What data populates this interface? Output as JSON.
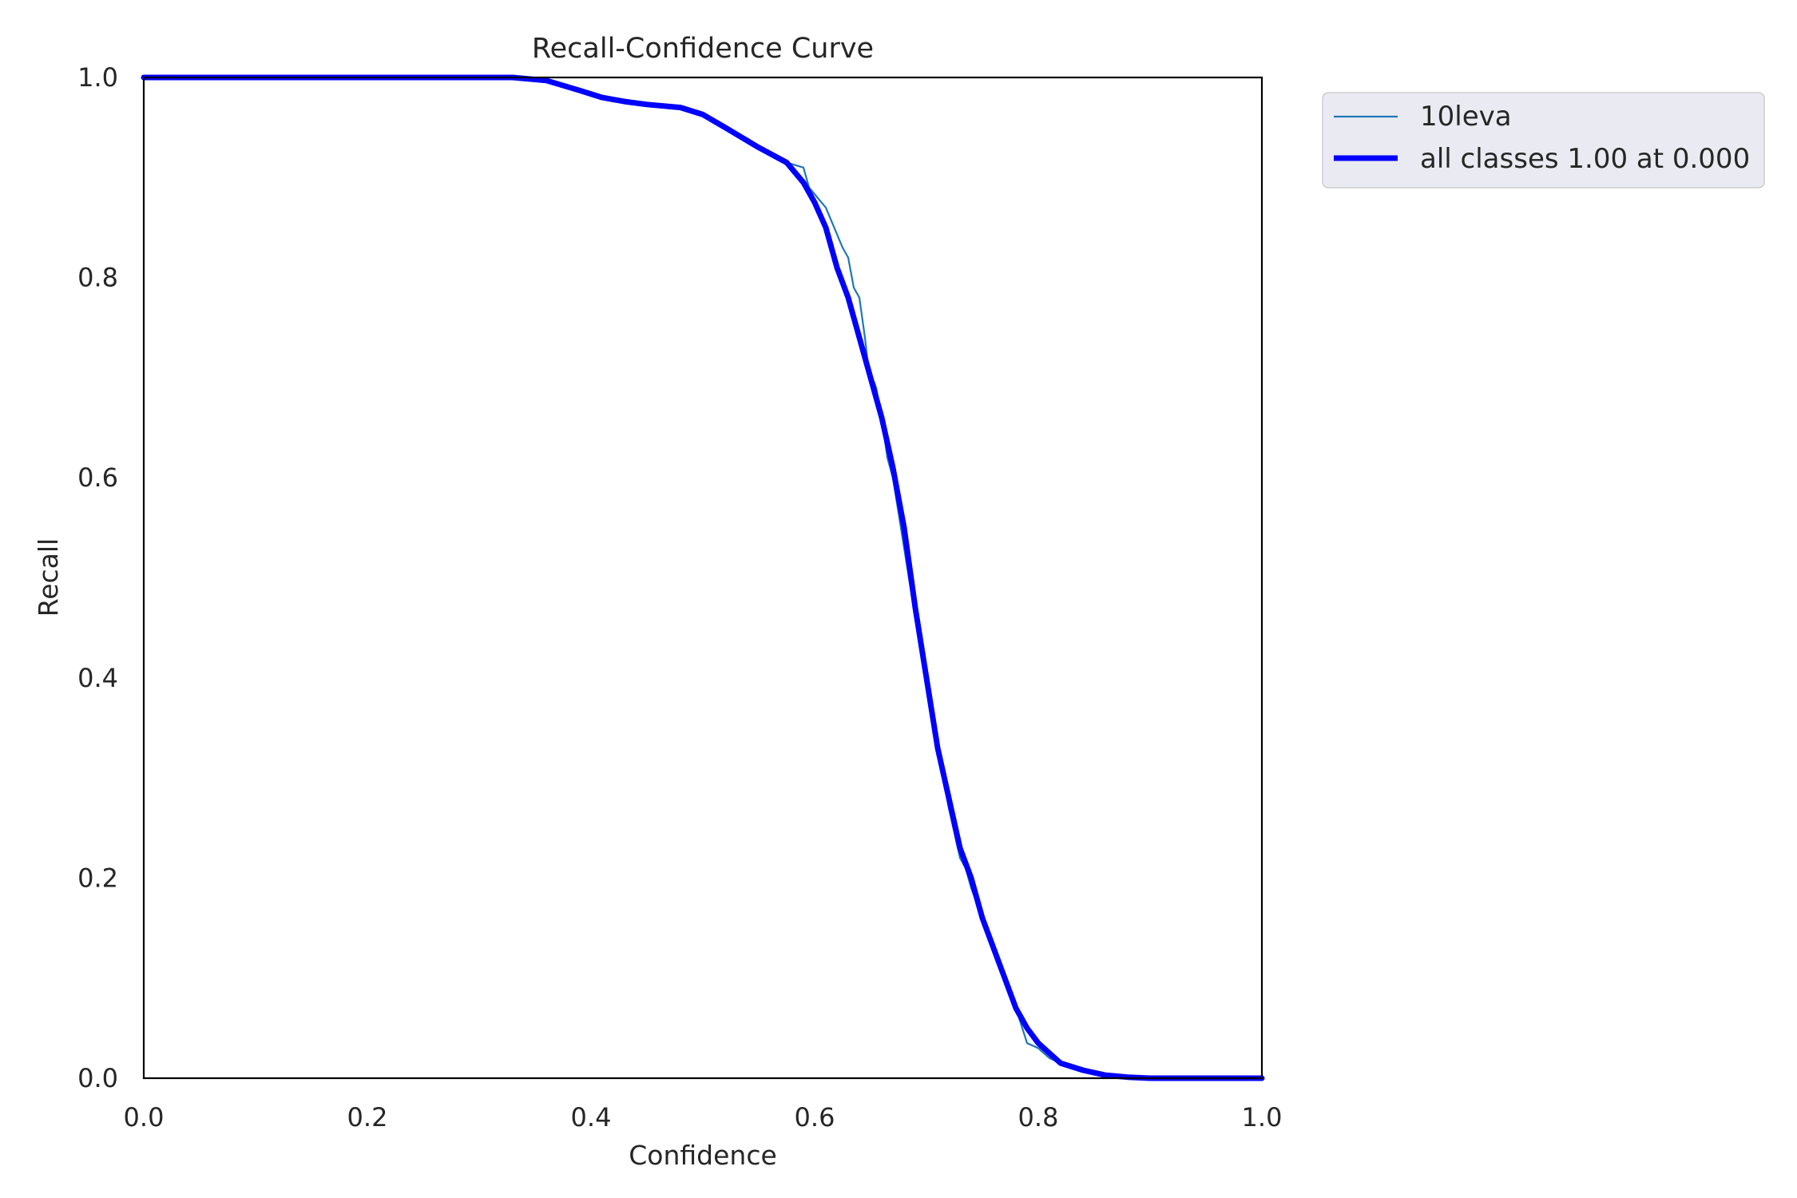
{
  "chart_data": {
    "type": "line",
    "title": "Recall-Confidence Curve",
    "xlabel": "Confidence",
    "ylabel": "Recall",
    "xlim": [
      0,
      1
    ],
    "ylim": [
      0,
      1
    ],
    "x_ticks": [
      "0.0",
      "0.2",
      "0.4",
      "0.6",
      "0.8",
      "1.0"
    ],
    "y_ticks": [
      "0.0",
      "0.2",
      "0.4",
      "0.6",
      "0.8",
      "1.0"
    ],
    "grid": false,
    "legend_position": "outside-top-right",
    "series": [
      {
        "name": "10leva",
        "color": "#1f77b4",
        "style": "thin",
        "x": [
          0.0,
          0.1,
          0.2,
          0.3,
          0.33,
          0.36,
          0.39,
          0.41,
          0.43,
          0.45,
          0.48,
          0.5,
          0.52,
          0.55,
          0.575,
          0.59,
          0.595,
          0.61,
          0.625,
          0.63,
          0.635,
          0.64,
          0.645,
          0.648,
          0.655,
          0.66,
          0.665,
          0.67,
          0.68,
          0.69,
          0.7,
          0.705,
          0.71,
          0.72,
          0.73,
          0.735,
          0.74,
          0.75,
          0.76,
          0.77,
          0.78,
          0.79,
          0.8,
          0.81,
          0.82,
          0.84,
          0.86,
          0.88,
          0.9,
          1.0
        ],
        "y": [
          1.0,
          1.0,
          1.0,
          1.0,
          1.0,
          0.997,
          0.987,
          0.98,
          0.976,
          0.973,
          0.97,
          0.963,
          0.95,
          0.93,
          0.915,
          0.91,
          0.89,
          0.87,
          0.83,
          0.82,
          0.79,
          0.78,
          0.74,
          0.71,
          0.69,
          0.66,
          0.62,
          0.6,
          0.53,
          0.46,
          0.4,
          0.37,
          0.33,
          0.27,
          0.22,
          0.21,
          0.19,
          0.16,
          0.13,
          0.1,
          0.07,
          0.035,
          0.03,
          0.02,
          0.015,
          0.008,
          0.003,
          0.001,
          0.0,
          0.0
        ]
      },
      {
        "name": "all classes 1.00 at 0.000",
        "color": "#0000ff",
        "style": "thick",
        "x": [
          0.0,
          0.1,
          0.2,
          0.3,
          0.33,
          0.36,
          0.39,
          0.41,
          0.43,
          0.45,
          0.48,
          0.5,
          0.52,
          0.55,
          0.575,
          0.59,
          0.6,
          0.61,
          0.62,
          0.63,
          0.64,
          0.65,
          0.66,
          0.67,
          0.68,
          0.69,
          0.7,
          0.71,
          0.72,
          0.73,
          0.74,
          0.75,
          0.76,
          0.77,
          0.78,
          0.79,
          0.8,
          0.81,
          0.82,
          0.84,
          0.86,
          0.88,
          0.9,
          1.0
        ],
        "y": [
          1.0,
          1.0,
          1.0,
          1.0,
          1.0,
          0.997,
          0.987,
          0.98,
          0.976,
          0.973,
          0.97,
          0.963,
          0.95,
          0.93,
          0.915,
          0.895,
          0.875,
          0.85,
          0.81,
          0.78,
          0.74,
          0.7,
          0.66,
          0.61,
          0.55,
          0.47,
          0.4,
          0.33,
          0.28,
          0.23,
          0.2,
          0.16,
          0.13,
          0.1,
          0.07,
          0.05,
          0.035,
          0.025,
          0.015,
          0.008,
          0.003,
          0.001,
          0.0,
          0.0
        ]
      }
    ]
  }
}
